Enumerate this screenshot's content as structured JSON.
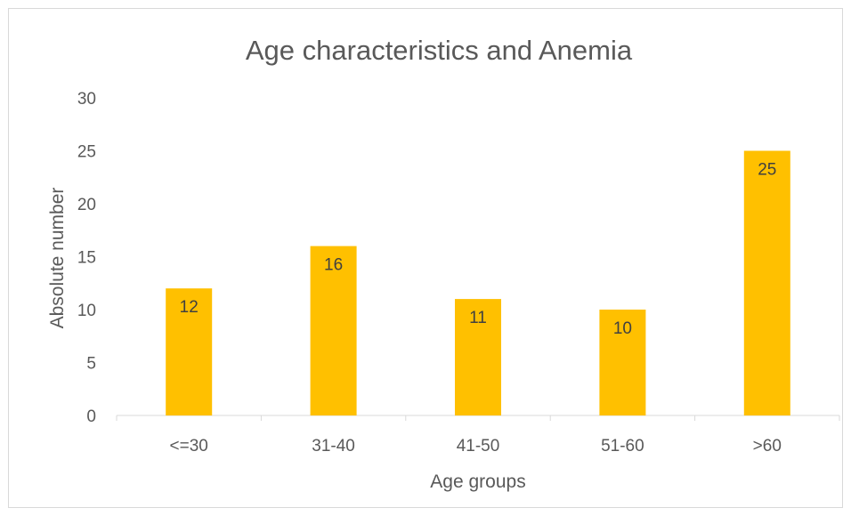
{
  "chart_data": {
    "type": "bar",
    "title": "Age characteristics and  Anemia",
    "xlabel": "Age groups",
    "ylabel": "Absolute number",
    "categories": [
      "<=30",
      "31-40",
      "41-50",
      "51-60",
      ">60"
    ],
    "values": [
      12,
      16,
      11,
      10,
      25
    ],
    "data_labels": [
      "12",
      "16",
      "11",
      "10",
      "25"
    ],
    "ylim": [
      0,
      30
    ],
    "yticks": [
      "0",
      "5",
      "10",
      "15",
      "20",
      "25",
      "30"
    ],
    "grid": false,
    "legend": "none",
    "bar_color": "#FFC000"
  }
}
